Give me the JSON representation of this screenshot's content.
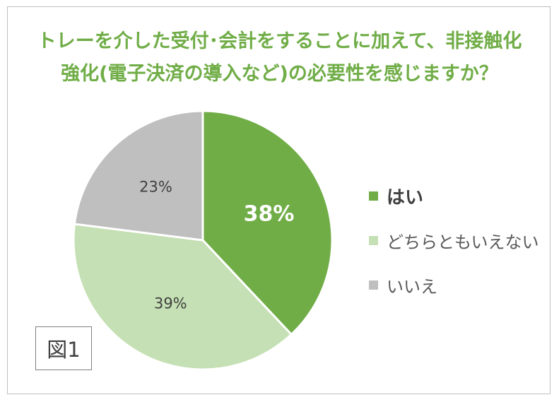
{
  "title_lines": [
    "トレーを介した受付･会計をすることに加えて、非接触化",
    "強化(電子決済の導入など)の必要性を感じますか？"
  ],
  "figure_label": "図1",
  "colors": {
    "title": "#70ad47",
    "series": [
      "#70ad47",
      "#c5e0b4",
      "#bfbfbf"
    ]
  },
  "chart_data": {
    "type": "pie",
    "title": "トレーを介した受付･会計をすることに加えて、非接触化強化(電子決済の導入など)の必要性を感じますか？",
    "categories": [
      "はい",
      "どちらともいえない",
      "いいえ"
    ],
    "values": [
      38,
      39,
      23
    ],
    "data_labels": [
      "38%",
      "39%",
      "23%"
    ],
    "legend_position": "right"
  }
}
